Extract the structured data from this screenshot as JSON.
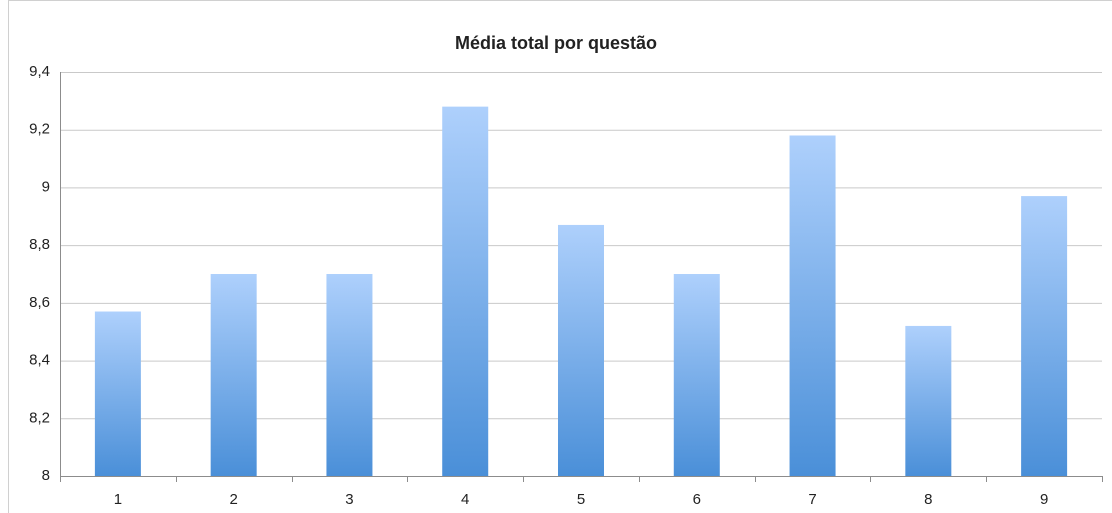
{
  "chart_data": {
    "type": "bar",
    "title": "Média total por questão",
    "categories": [
      "1",
      "2",
      "3",
      "4",
      "5",
      "6",
      "7",
      "8",
      "9"
    ],
    "values": [
      8.57,
      8.7,
      8.7,
      9.28,
      8.87,
      8.7,
      9.18,
      8.52,
      8.97
    ],
    "color": "#4a8fd8",
    "ylim": [
      8,
      9.4
    ],
    "yticks": [
      8,
      {
        "value": 8.2,
        "label": "8,2"
      },
      {
        "value": 8.4,
        "label": "8,4"
      },
      {
        "value": 8.6,
        "label": "8,6"
      },
      {
        "value": 8.8,
        "label": "8,8"
      },
      9,
      {
        "value": 9.2,
        "label": "9,2"
      },
      {
        "value": 9.4,
        "label": "9,4"
      }
    ],
    "grid": true
  }
}
